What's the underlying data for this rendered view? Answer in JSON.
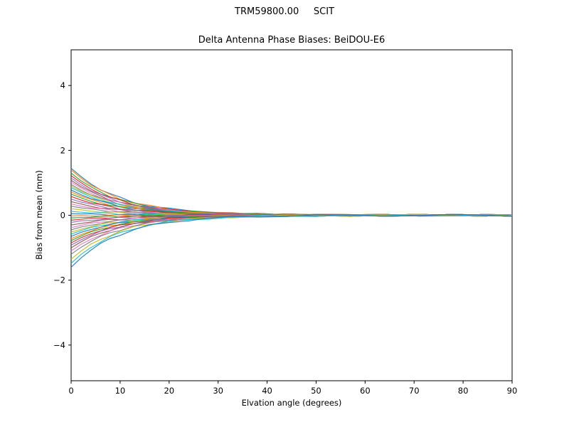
{
  "chart_data": {
    "type": "line",
    "suptitle": "TRM59800.00     SCIT",
    "title": "Delta Antenna Phase Biases: BeiDOU-E6",
    "xlabel": "Elvation angle (degrees)",
    "ylabel": "Bias from mean (mm)",
    "xlim": [
      0,
      90
    ],
    "ylim": [
      -5.1,
      5.1
    ],
    "xticks": [
      0,
      10,
      20,
      30,
      40,
      50,
      60,
      70,
      80,
      90
    ],
    "yticks": [
      -4,
      -2,
      0,
      2,
      4
    ],
    "grid": false,
    "legend": "none",
    "x": [
      0,
      2,
      4,
      6,
      8,
      10,
      13,
      16,
      20,
      24,
      28,
      33,
      38,
      44,
      50,
      57,
      64,
      71,
      78,
      84,
      90
    ],
    "decay_profile": [
      1,
      0.82,
      0.67,
      0.55,
      0.45,
      0.37,
      0.27,
      0.2,
      0.135,
      0.091,
      0.061,
      0.037,
      0.022,
      0.012,
      0.007,
      0.003,
      0.002,
      0.001,
      0.0005,
      0.0002,
      0.0001
    ],
    "jitter_amplitude": 0.03,
    "series": [
      {
        "start": 1.45,
        "color": "#1f77b4"
      },
      {
        "start": 1.4,
        "color": "#ff7f0e"
      },
      {
        "start": 1.3,
        "color": "#2ca02c"
      },
      {
        "start": 1.22,
        "color": "#d62728"
      },
      {
        "start": 1.15,
        "color": "#9467bd"
      },
      {
        "start": 1.08,
        "color": "#8c564b"
      },
      {
        "start": 1.02,
        "color": "#e377c2"
      },
      {
        "start": 0.95,
        "color": "#7f7f7f"
      },
      {
        "start": 0.9,
        "color": "#bcbd22"
      },
      {
        "start": 0.85,
        "color": "#17becf"
      },
      {
        "start": 0.78,
        "color": "#1f77b4"
      },
      {
        "start": 0.72,
        "color": "#ff7f0e"
      },
      {
        "start": 0.65,
        "color": "#2ca02c"
      },
      {
        "start": 0.58,
        "color": "#d62728"
      },
      {
        "start": 0.5,
        "color": "#9467bd"
      },
      {
        "start": 0.42,
        "color": "#8c564b"
      },
      {
        "start": 0.35,
        "color": "#e377c2"
      },
      {
        "start": 0.28,
        "color": "#7f7f7f"
      },
      {
        "start": 0.2,
        "color": "#bcbd22"
      },
      {
        "start": 0.12,
        "color": "#17becf"
      },
      {
        "start": 0.05,
        "color": "#1f77b4"
      },
      {
        "start": -0.02,
        "color": "#ff7f0e"
      },
      {
        "start": -0.08,
        "color": "#2ca02c"
      },
      {
        "start": -0.15,
        "color": "#d62728"
      },
      {
        "start": -0.22,
        "color": "#9467bd"
      },
      {
        "start": -0.3,
        "color": "#8c564b"
      },
      {
        "start": -0.38,
        "color": "#e377c2"
      },
      {
        "start": -0.45,
        "color": "#7f7f7f"
      },
      {
        "start": -0.52,
        "color": "#bcbd22"
      },
      {
        "start": -0.58,
        "color": "#17becf"
      },
      {
        "start": -0.65,
        "color": "#1f77b4"
      },
      {
        "start": -0.72,
        "color": "#ff7f0e"
      },
      {
        "start": -0.78,
        "color": "#2ca02c"
      },
      {
        "start": -0.85,
        "color": "#d62728"
      },
      {
        "start": -0.92,
        "color": "#9467bd"
      },
      {
        "start": -1.0,
        "color": "#8c564b"
      },
      {
        "start": -1.1,
        "color": "#e377c2"
      },
      {
        "start": -1.2,
        "color": "#7f7f7f"
      },
      {
        "start": -1.35,
        "color": "#bcbd22"
      },
      {
        "start": -1.48,
        "color": "#17becf"
      },
      {
        "start": -1.6,
        "color": "#1f77b4"
      }
    ]
  }
}
